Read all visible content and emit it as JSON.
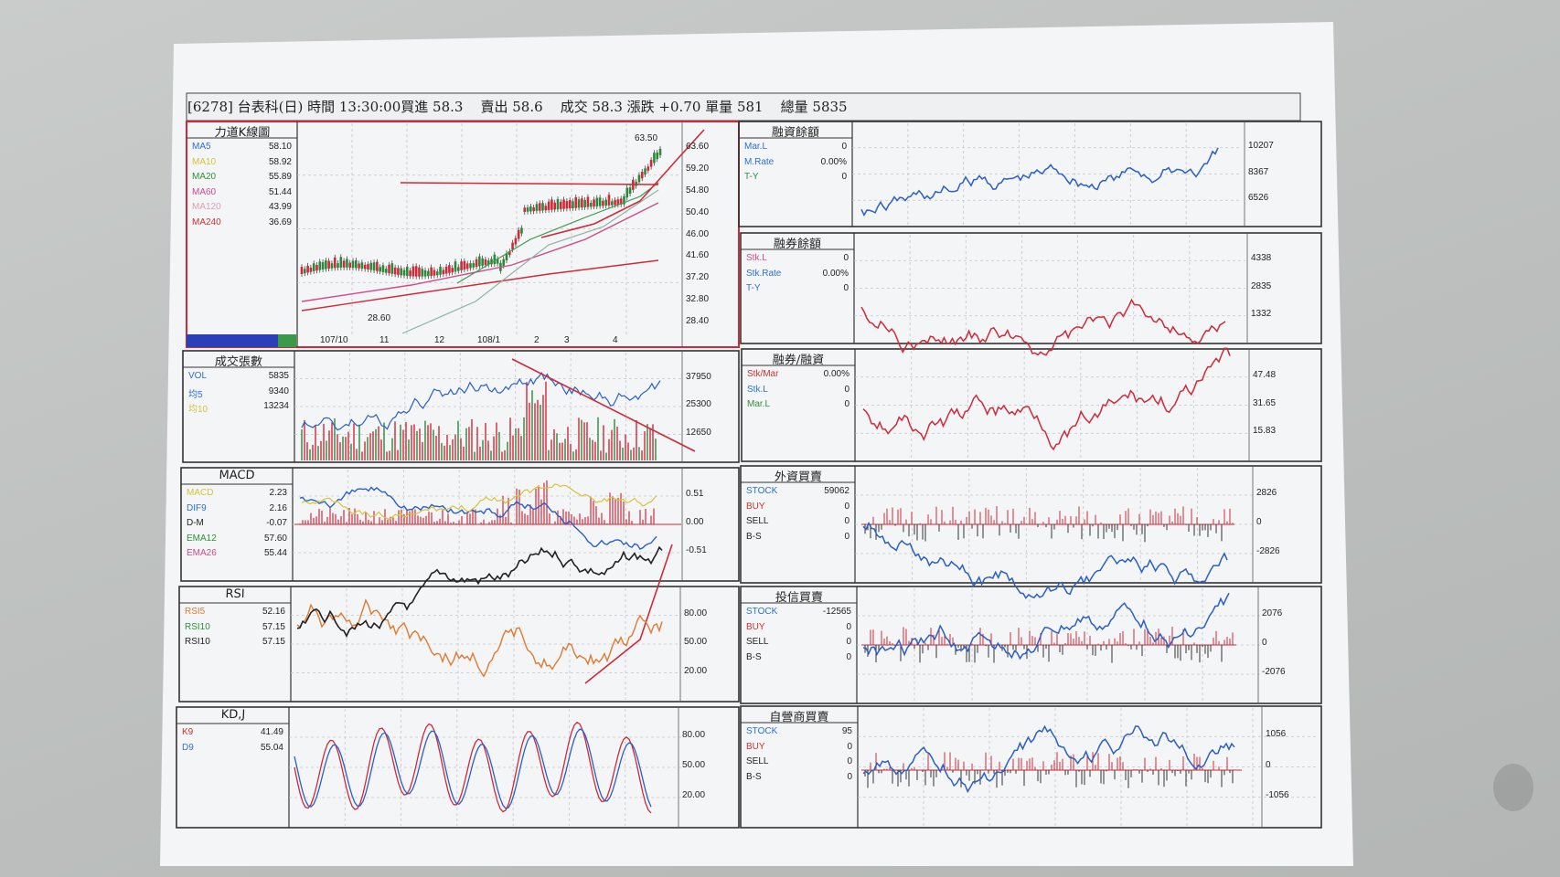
{
  "header": {
    "text": "[6278] 台表科(日) 時間 13:30:00買進 58.3    賣出 58.6    成交 58.3 漲跌 +0.70 單量 581    總量 5835"
  },
  "left": {
    "kline": {
      "title": "力道K線圖",
      "rows": [
        {
          "label": "MA5",
          "value": "58.10",
          "color": "#2a6fd6"
        },
        {
          "label": "MA10",
          "value": "58.92",
          "color": "#d8c23a"
        },
        {
          "label": "MA20",
          "value": "55.89",
          "color": "#2f8f3a"
        },
        {
          "label": "MA60",
          "value": "51.44",
          "color": "#d04a8a"
        },
        {
          "label": "MA120",
          "value": "43.99",
          "color": "#d8a0b8"
        },
        {
          "label": "MA240",
          "value": "36.69",
          "color": "#d03030"
        }
      ],
      "axis": [
        "63.60",
        "59.20",
        "54.80",
        "50.40",
        "46.00",
        "41.60",
        "37.20",
        "32.80",
        "28.40"
      ],
      "high_label": "63.50",
      "low_label": "28.60",
      "dates": [
        "107/10",
        "11",
        "12",
        "108/1",
        "2",
        "3",
        "4"
      ]
    },
    "volume": {
      "title": "成交張數",
      "rows": [
        {
          "label": "VOL",
          "value": "5835",
          "color": "#2a6fd6"
        },
        {
          "label": "均5",
          "value": "9340",
          "color": "#2a6fd6"
        },
        {
          "label": "均10",
          "value": "13234",
          "color": "#d8c23a"
        }
      ],
      "axis": [
        "37950",
        "25300",
        "12650"
      ]
    },
    "macd": {
      "title": "MACD",
      "rows": [
        {
          "label": "MACD",
          "value": "2.23",
          "color": "#d8c23a"
        },
        {
          "label": "DIF9",
          "value": "2.16",
          "color": "#2a6fd6"
        },
        {
          "label": "D-M",
          "value": "-0.07",
          "color": "#222"
        },
        {
          "label": "EMA12",
          "value": "57.60",
          "color": "#2f8f3a"
        },
        {
          "label": "EMA26",
          "value": "55.44",
          "color": "#d04a8a"
        }
      ],
      "axis": [
        "0.51",
        "0.00",
        "-0.51"
      ]
    },
    "rsi": {
      "title": "RSI",
      "rows": [
        {
          "label": "RSI5",
          "value": "52.16",
          "color": "#e07a30"
        },
        {
          "label": "RSI10",
          "value": "57.15",
          "color": "#2f8f3a"
        },
        {
          "label": "RSI10",
          "value": "57.15",
          "color": "#222"
        }
      ],
      "axis": [
        "80.00",
        "50.00",
        "20.00"
      ]
    },
    "kdj": {
      "title": "KD,J",
      "rows": [
        {
          "label": "K9",
          "value": "41.49",
          "color": "#d03030"
        },
        {
          "label": "D9",
          "value": "55.04",
          "color": "#2a6fd6"
        }
      ],
      "axis": [
        "80.00",
        "50.00",
        "20.00"
      ]
    }
  },
  "right": {
    "margin_balance": {
      "title": "融資餘額",
      "rows": [
        {
          "label": "Mar.L",
          "value": "0",
          "color": "#2a6fd6"
        },
        {
          "label": "M.Rate",
          "value": "0.00%",
          "color": "#2a6fd6"
        },
        {
          "label": "T-Y",
          "value": "0",
          "color": "#2f8f3a"
        }
      ],
      "axis": [
        "10207",
        "8367",
        "6526"
      ]
    },
    "short_balance": {
      "title": "融券餘額",
      "rows": [
        {
          "label": "Stk.L",
          "value": "0",
          "color": "#d04a8a"
        },
        {
          "label": "Stk.Rate",
          "value": "0.00%",
          "color": "#2a6fd6"
        },
        {
          "label": "T-Y",
          "value": "0",
          "color": "#2a6fd6"
        }
      ],
      "axis": [
        "4338",
        "2835",
        "1332"
      ]
    },
    "short_margin_ratio": {
      "title": "融券/融資",
      "rows": [
        {
          "label": "Stk/Mar",
          "value": "0.00%",
          "color": "#d03030"
        },
        {
          "label": "Stk.L",
          "value": "0",
          "color": "#2a6fd6"
        },
        {
          "label": "Mar.L",
          "value": "0",
          "color": "#2f8f3a"
        }
      ],
      "axis": [
        "47.48",
        "31.65",
        "15.83"
      ]
    },
    "foreign": {
      "title": "外資買賣",
      "rows": [
        {
          "label": "STOCK",
          "value": "59062",
          "color": "#2a6fd6"
        },
        {
          "label": "BUY",
          "value": "0",
          "color": "#d03030"
        },
        {
          "label": "SELL",
          "value": "0",
          "color": "#222"
        },
        {
          "label": "B-S",
          "value": "0",
          "color": "#222"
        }
      ],
      "axis": [
        "2826",
        "0",
        "-2826"
      ]
    },
    "investment_trust": {
      "title": "投信買賣",
      "rows": [
        {
          "label": "STOCK",
          "value": "-12565",
          "color": "#2a6fd6"
        },
        {
          "label": "BUY",
          "value": "0",
          "color": "#d03030"
        },
        {
          "label": "SELL",
          "value": "0",
          "color": "#222"
        },
        {
          "label": "B-S",
          "value": "0",
          "color": "#222"
        }
      ],
      "axis": [
        "2076",
        "0",
        "-2076"
      ]
    },
    "dealer": {
      "title": "自營商買賣",
      "rows": [
        {
          "label": "STOCK",
          "value": "95",
          "color": "#2a6fd6"
        },
        {
          "label": "BUY",
          "value": "0",
          "color": "#d03030"
        },
        {
          "label": "SELL",
          "value": "0",
          "color": "#222"
        },
        {
          "label": "B-S",
          "value": "0",
          "color": "#222"
        }
      ],
      "axis": [
        "1056",
        "0",
        "-1056"
      ]
    }
  },
  "colors": {
    "red": "#d02a3a",
    "blue": "#2a5fc8",
    "grid": "#bfc3c8",
    "paper": "#f4f5f6"
  }
}
